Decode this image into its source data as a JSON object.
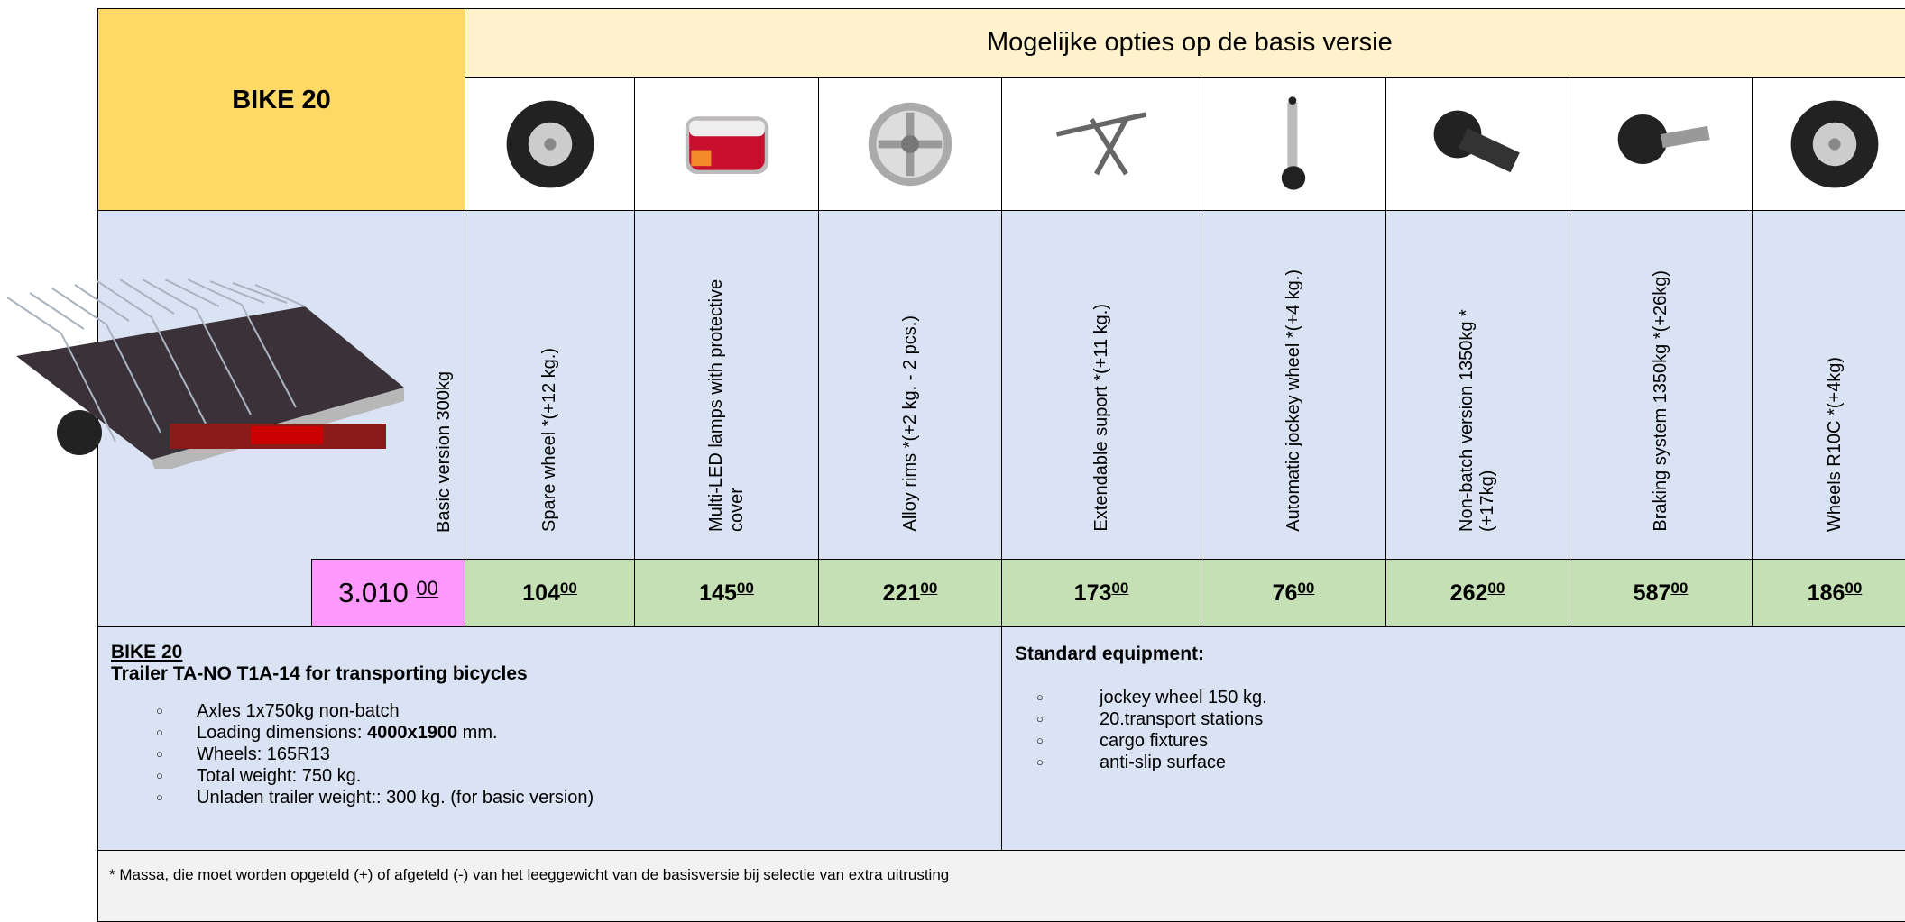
{
  "header": {
    "model": "BIKE 20",
    "options_title": "Mogelijke opties op de basis versie"
  },
  "basic": {
    "label": "Basic version  300kg",
    "price": "3.010",
    "price_cents": "00"
  },
  "options": [
    {
      "label": "Spare wheel *(+12 kg.)",
      "price": "104",
      "cents": "00"
    },
    {
      "label": "Multi-LED lamps with protective cover",
      "price": "145",
      "cents": "00"
    },
    {
      "label": "Alloy rims *(+2 kg. - 2 pcs.)",
      "price": "221",
      "cents": "00"
    },
    {
      "label": "Extendable suport  *(+11 kg.)",
      "price": "173",
      "cents": "00"
    },
    {
      "label": "Automatic jockey wheel *(+4 kg.)",
      "price": "76",
      "cents": "00"
    },
    {
      "label": "Non-batch version 1350kg *(+17kg)",
      "price": "262",
      "cents": "00"
    },
    {
      "label": "Braking system 1350kg *(+26kg)",
      "price": "587",
      "cents": "00"
    },
    {
      "label": "Wheels R10C *(+4kg)",
      "price": "186",
      "cents": "00"
    }
  ],
  "description": {
    "title": "BIKE 20",
    "subtitle": "Trailer  TA-NO  T1A-14 for transporting bicycles",
    "bullets": [
      "Axles 1x750kg non-batch",
      "Loading dimensions: ",
      "4000x1900",
      " mm.",
      "Wheels: 165R13",
      "Total weight: 750 kg.",
      "Unladen trailer weight:: 300 kg. (for basic version)"
    ]
  },
  "equipment": {
    "title": "Standard equipment:",
    "items": [
      " jockey wheel 150 kg.",
      "20.transport stations",
      "cargo fixtures",
      "anti-slip surface"
    ]
  },
  "footnote": "* Massa, die moet worden opgeteld (+) of afgeteld (-) van het leeggewicht van de basisversie bij selectie van extra uitrusting"
}
